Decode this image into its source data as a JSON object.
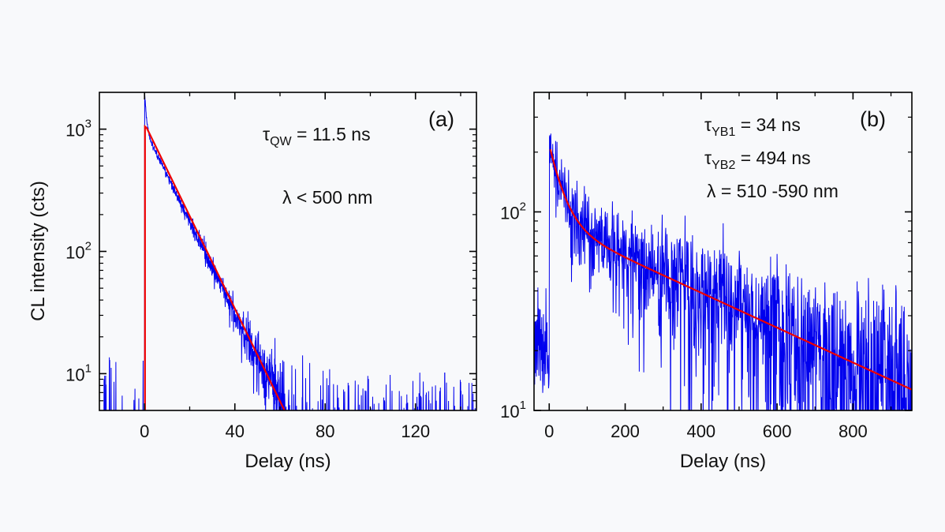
{
  "chart_data": [
    {
      "type": "line",
      "panel_label": "(a)",
      "xlabel": "Delay (ns)",
      "ylabel": "CL intensity (cts)",
      "xscale": "linear",
      "yscale": "log",
      "xlim": [
        -20,
        147
      ],
      "ylim": [
        5,
        2000
      ],
      "x_ticks": [
        0,
        40,
        80,
        120
      ],
      "x_tick_labels": [
        "0",
        "40",
        "80",
        "120"
      ],
      "y_ticks": [
        10,
        100,
        1000
      ],
      "y_tick_bases": [
        "10",
        "10",
        "10"
      ],
      "y_tick_exponents": [
        "1",
        "2",
        "3"
      ],
      "annotations": [
        {
          "base": "τ",
          "sub": "QW",
          "rest": " = 11.5 ns"
        },
        {
          "base": "λ < 500 nm",
          "sub": "",
          "rest": ""
        }
      ],
      "series": [
        {
          "name": "data",
          "color": "#0000ee",
          "style": "noisy measurement",
          "onset_ns": 0,
          "peak_cts": 1650,
          "decay_tau_ns": 11.5,
          "background_cts": 6
        },
        {
          "name": "fit",
          "color": "#ee0000",
          "style": "single exponential fit",
          "x": [
            0.2,
            1,
            62
          ],
          "y": [
            1050,
            1020,
            5
          ]
        }
      ]
    },
    {
      "type": "line",
      "panel_label": "(b)",
      "xlabel": "Delay (ns)",
      "ylabel": "",
      "xscale": "linear",
      "yscale": "log",
      "xlim": [
        -40,
        955
      ],
      "ylim": [
        10,
        400
      ],
      "x_ticks": [
        0,
        200,
        400,
        600,
        800
      ],
      "x_tick_labels": [
        "0",
        "200",
        "400",
        "600",
        "800"
      ],
      "y_ticks": [
        10,
        100
      ],
      "y_tick_bases": [
        "10",
        "10"
      ],
      "y_tick_exponents": [
        "1",
        "2"
      ],
      "annotations": [
        {
          "base": "τ",
          "sub": "YB1",
          "rest": " = 34 ns"
        },
        {
          "base": "τ",
          "sub": "YB2",
          "rest": " = 494 ns"
        },
        {
          "base": "λ = 510 -590 nm",
          "sub": "",
          "rest": ""
        }
      ],
      "series": [
        {
          "name": "data",
          "color": "#0000ee",
          "style": "noisy measurement",
          "onset_ns": 0,
          "peak_cts": 280,
          "tau1_ns": 34,
          "tau2_ns": 494,
          "background_cts": 25
        },
        {
          "name": "fit",
          "color": "#ee0000",
          "style": "bi-exponential fit",
          "x_range": [
            3,
            955
          ],
          "A1": 130,
          "tau1_ns": 34,
          "A2": 88,
          "tau2_ns": 494
        }
      ]
    }
  ]
}
